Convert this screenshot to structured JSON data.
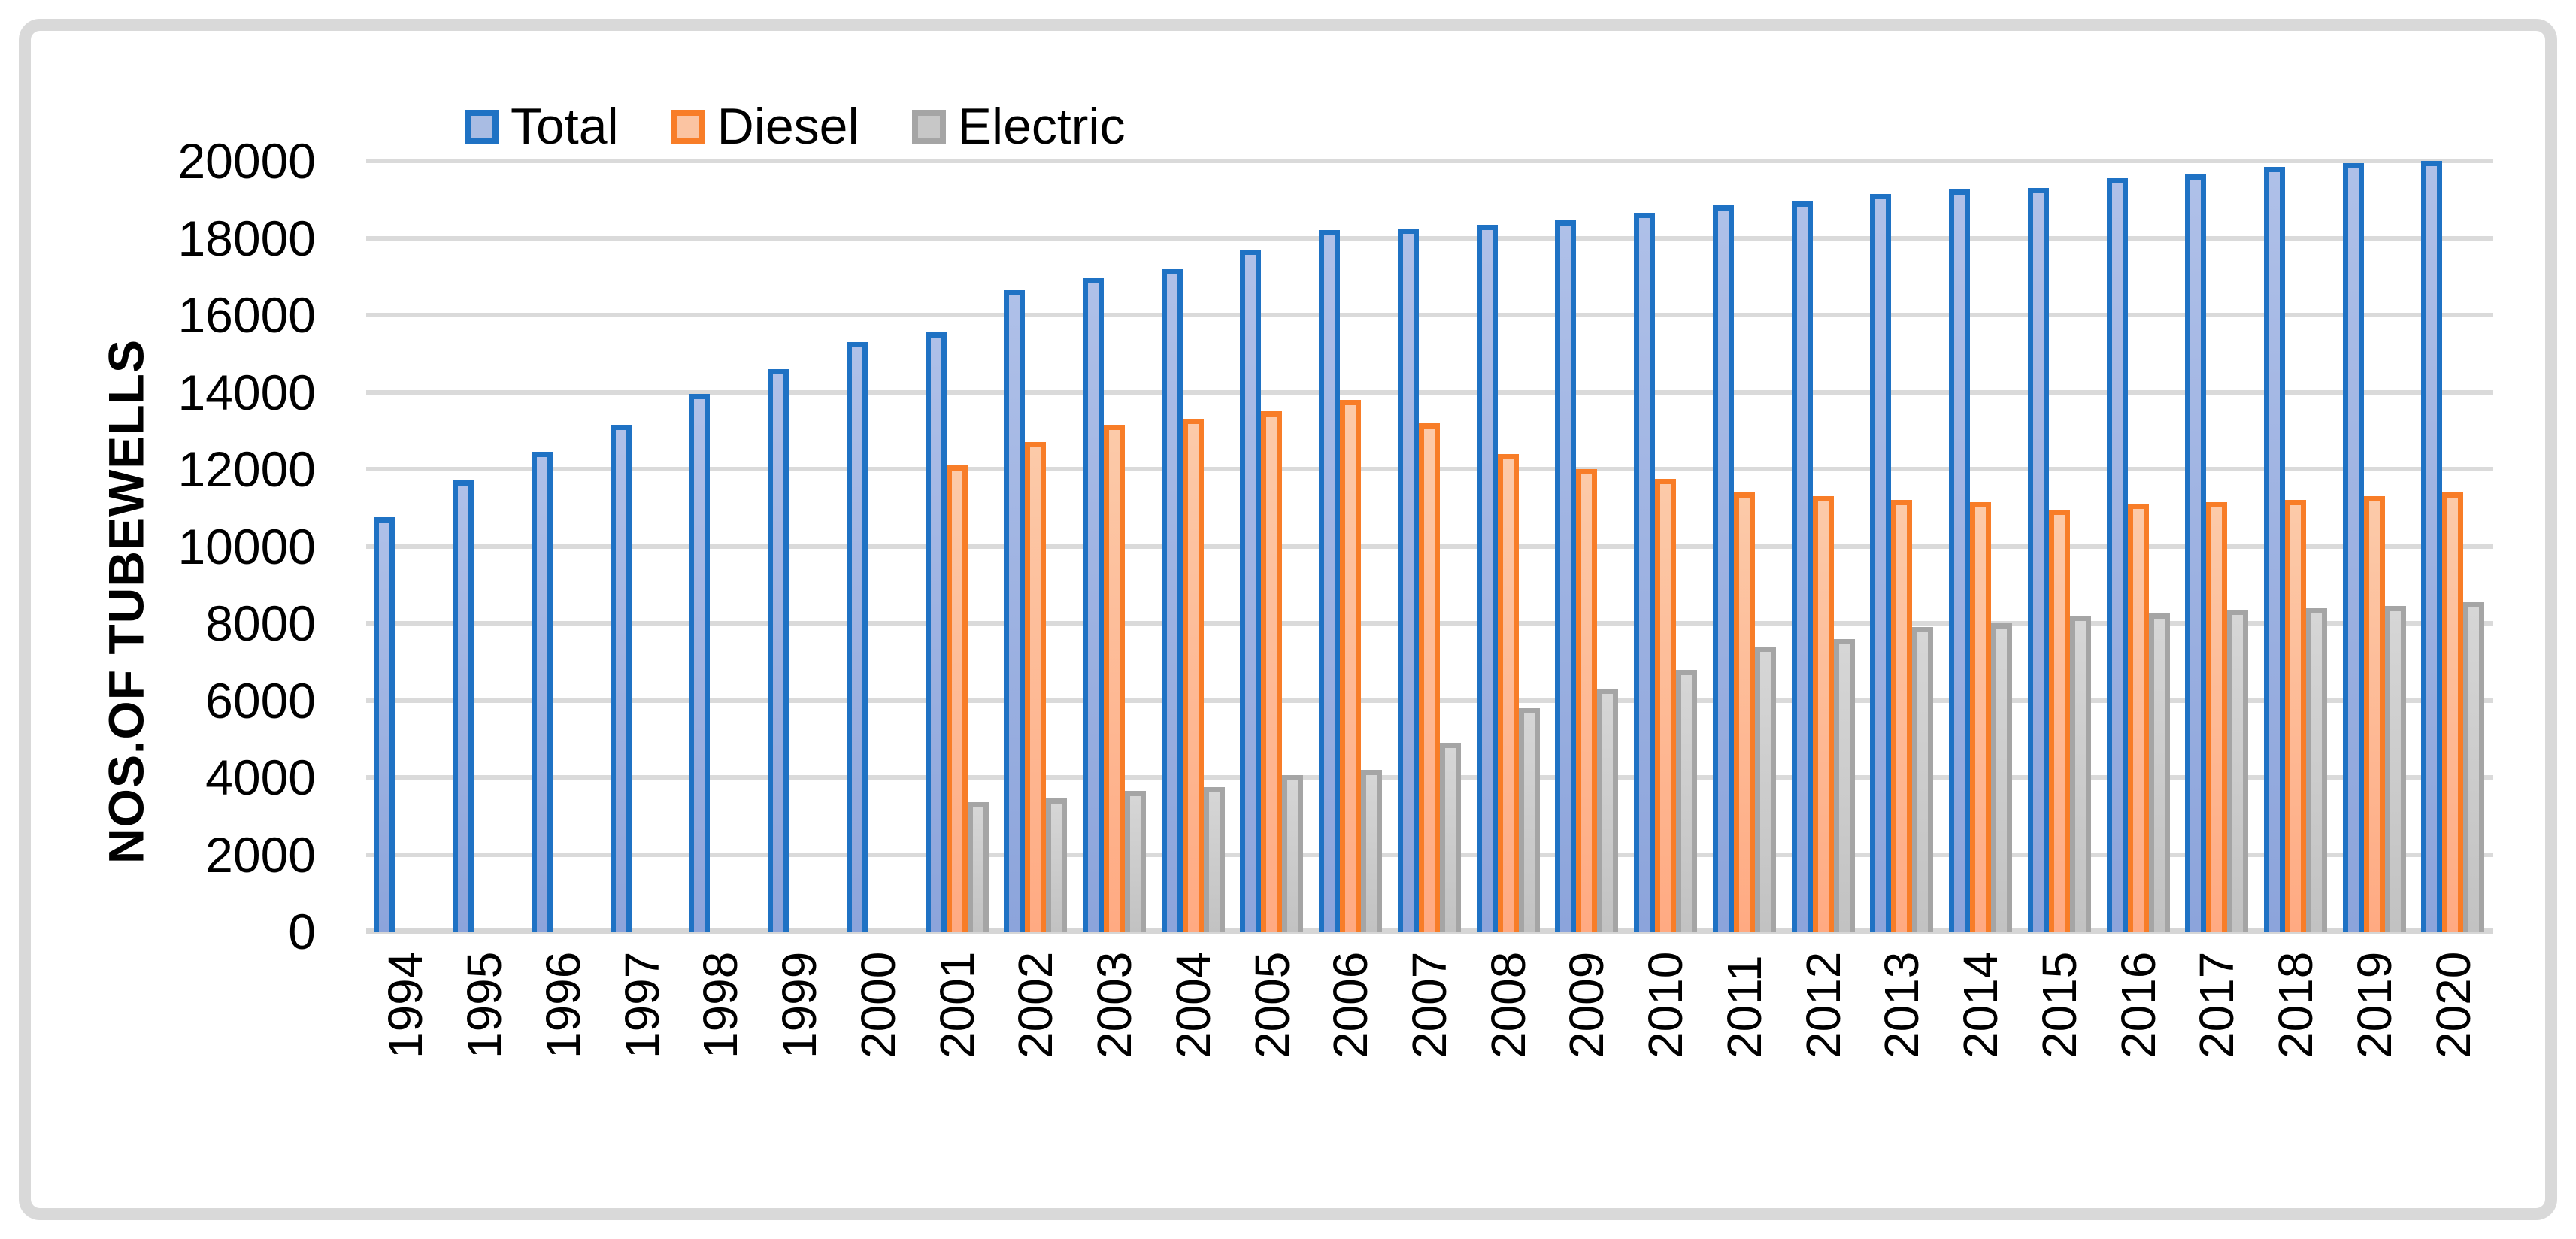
{
  "figure": {
    "background": "#FFFFFF",
    "border_color": "#D9D9D9",
    "gridline_color": "#DADADA",
    "axis_line_color": "#D6D6D6"
  },
  "y_axis": {
    "title": "NOS.OF TUBEWELLS",
    "ticks": [
      "0",
      "2000",
      "4000",
      "6000",
      "8000",
      "10000",
      "12000",
      "14000",
      "16000",
      "18000",
      "20000"
    ]
  },
  "chart_data": {
    "type": "bar",
    "title": "",
    "xlabel": "",
    "ylabel": "NOS.OF TUBEWELLS",
    "ylim": [
      0,
      20000
    ],
    "ytick_step": 2000,
    "grid": true,
    "legend_position": "top",
    "categories": [
      "1994",
      "1995",
      "1996",
      "1997",
      "1998",
      "1999",
      "2000",
      "2001",
      "2002",
      "2003",
      "2004",
      "2005",
      "2006",
      "2007",
      "2008",
      "2009",
      "2010",
      "2011",
      "2012",
      "2013",
      "2014",
      "2015",
      "2016",
      "2017",
      "2018",
      "2019",
      "2020"
    ],
    "series": [
      {
        "name": "Total",
        "border_color": "#1F72C4",
        "fill_top": "#AFC0E8",
        "fill_bottom": "#8CA4DB",
        "legend_fill": "#A9BCE3",
        "values": [
          10750,
          11700,
          12450,
          13150,
          13950,
          14600,
          15300,
          15550,
          16650,
          16950,
          17200,
          17700,
          18200,
          18250,
          18350,
          18450,
          18650,
          18850,
          18950,
          19150,
          19250,
          19300,
          19550,
          19650,
          19850,
          19950,
          20000
        ]
      },
      {
        "name": "Diesel",
        "border_color": "#F87D28",
        "fill_top": "#FCCAA9",
        "fill_bottom": "#FFAA82",
        "legend_fill": "#FBC4A2",
        "values": [
          null,
          null,
          null,
          null,
          null,
          null,
          null,
          12100,
          12700,
          13150,
          13300,
          13500,
          13800,
          13200,
          12400,
          12000,
          11750,
          11400,
          11300,
          11200,
          11150,
          10950,
          11100,
          11150,
          11200,
          11300,
          11400
        ]
      },
      {
        "name": "Electric",
        "border_color": "#A5A5A5",
        "fill_top": "#D6D6D6",
        "fill_bottom": "#C2C2C2",
        "legend_fill": "#C7C7C7",
        "values": [
          null,
          null,
          null,
          null,
          null,
          null,
          null,
          3350,
          3450,
          3650,
          3750,
          4050,
          4200,
          4900,
          5800,
          6300,
          6800,
          7400,
          7600,
          7900,
          8000,
          8200,
          8250,
          8350,
          8400,
          8450,
          8550
        ]
      }
    ]
  }
}
